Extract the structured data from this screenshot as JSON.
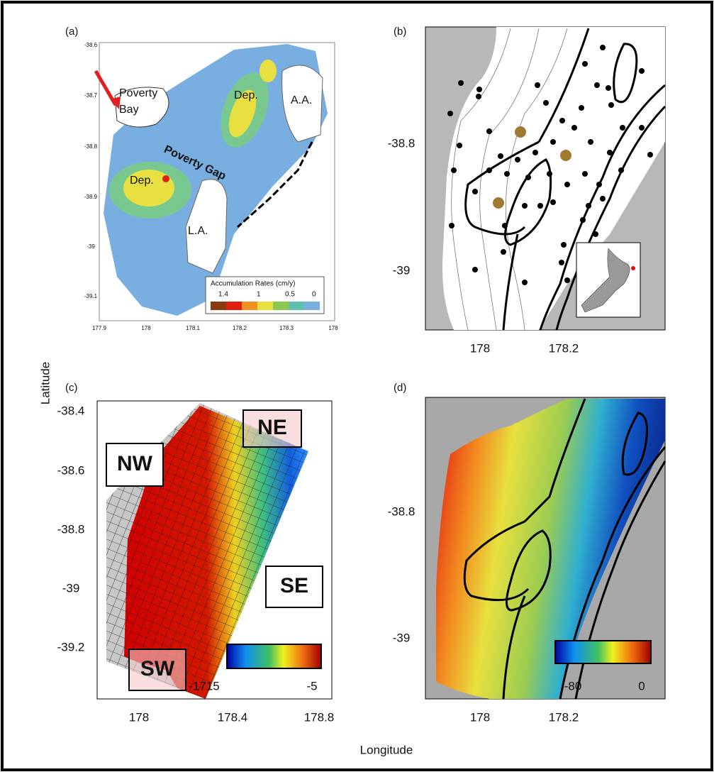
{
  "figure": {
    "y_label": "Latitude",
    "x_label": "Longitude"
  },
  "panels": [
    {
      "label": "(a)",
      "annotations": [
        "Poverty",
        "Bay",
        "Poverty Gap",
        "Dep.",
        "Dep.",
        "A.A.",
        "L.A."
      ],
      "legend": {
        "title": "Accumulation Rates (cm/y)",
        "labels": [
          "1.4",
          "1",
          "0.5",
          "0"
        ]
      },
      "xticks": [
        "177.9",
        "178",
        "178.1",
        "178.2",
        "178.3",
        "178"
      ],
      "yticks": [
        "-38.6",
        "-38.7",
        "-38.8",
        "-38.9",
        "-39",
        "-39.1"
      ]
    },
    {
      "label": "(b)",
      "xticks": [
        "178",
        "178.2"
      ],
      "yticks": [
        "-38.8",
        "-39"
      ]
    },
    {
      "label": "(c)",
      "regions": [
        "NE",
        "NW",
        "SE",
        "SW"
      ],
      "xticks": [
        "178",
        "178.4",
        "178.8"
      ],
      "yticks": [
        "-38.4",
        "-38.6",
        "-38.8",
        "-39",
        "-39.2"
      ],
      "colorbar_labels": [
        "-1715",
        "-5"
      ]
    },
    {
      "label": "(d)",
      "xticks": [
        "178",
        "178.2"
      ],
      "yticks": [
        "-38.8",
        "-39"
      ],
      "colorbar_labels": [
        "-80",
        "0"
      ]
    }
  ]
}
